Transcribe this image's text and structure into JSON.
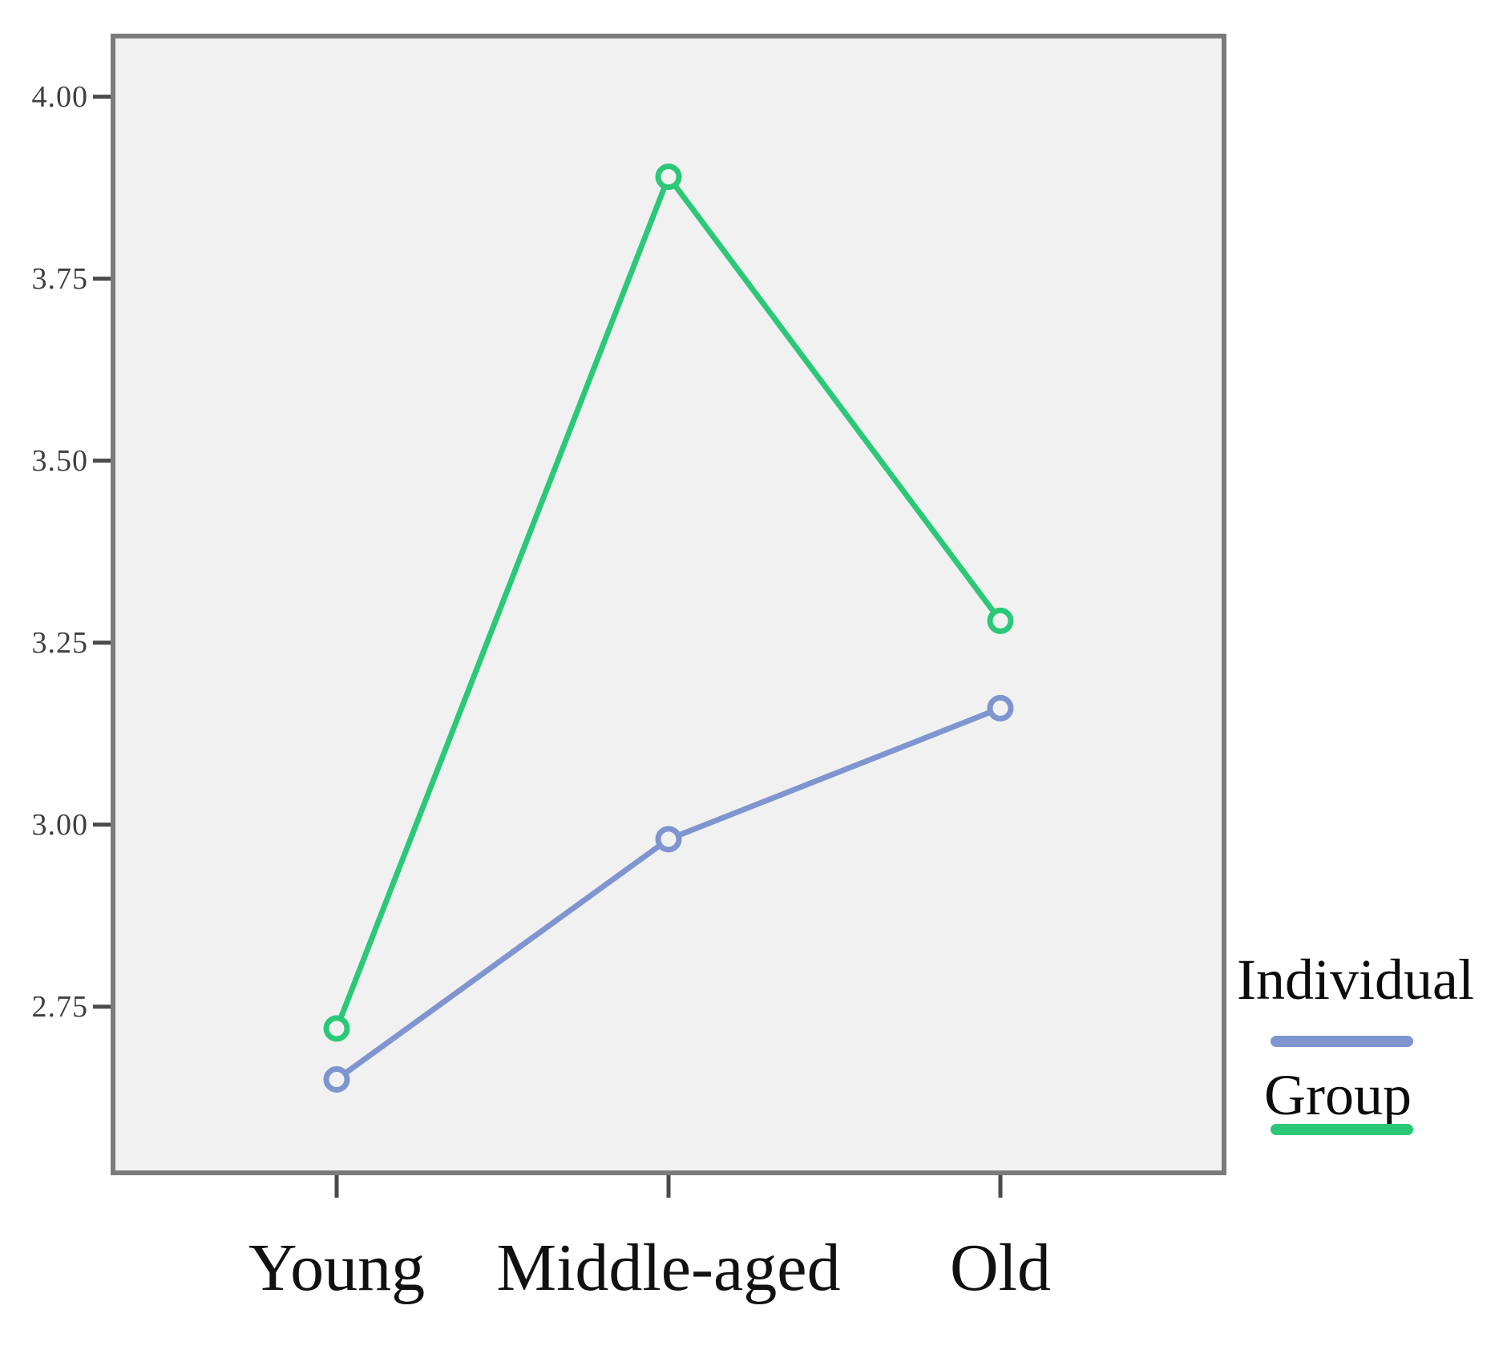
{
  "chart_data": {
    "type": "line",
    "title": "",
    "xlabel": "",
    "ylabel": "",
    "categories": [
      "Young",
      "Middle-aged",
      "Old"
    ],
    "series": [
      {
        "name": "Individual",
        "values": [
          2.65,
          2.98,
          3.16
        ],
        "color": "#7e95d0"
      },
      {
        "name": "Group",
        "values": [
          2.72,
          3.89,
          3.28
        ],
        "color": "#2bc977"
      }
    ],
    "y_tick_labels": [
      "4.00",
      "3.75",
      "3.50",
      "3.25",
      "3.00",
      "2.75"
    ],
    "y_ticks": [
      4.0,
      3.75,
      3.5,
      3.25,
      3.0,
      2.75
    ],
    "ylim": [
      2.525,
      4.08
    ],
    "grid": false,
    "marker": "open-circle",
    "legend_position": "right",
    "plot_background": "#f1f1f1",
    "frame_color": "#7b7b7b",
    "tick_color": "#4b4b4b"
  }
}
